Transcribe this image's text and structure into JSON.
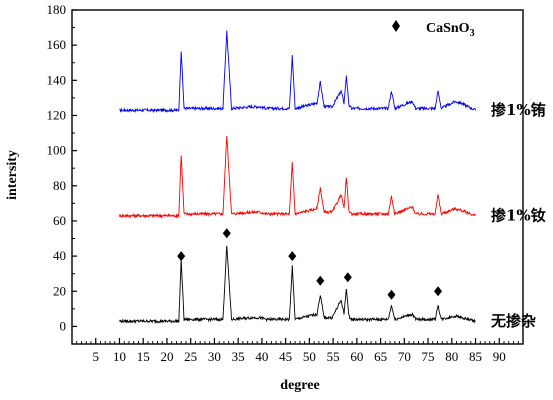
{
  "chart_data": {
    "type": "line",
    "title": "",
    "xlabel": "degree",
    "ylabel": "intersity",
    "xlim": [
      0,
      95
    ],
    "ylim": [
      -10,
      180
    ],
    "x_ticks": [
      "5",
      "10",
      "15",
      "20",
      "25",
      "30",
      "35",
      "40",
      "45",
      "50",
      "55",
      "60",
      "65",
      "70",
      "75",
      "80",
      "85",
      "90"
    ],
    "y_ticks": [
      "0",
      "20",
      "40",
      "60",
      "80",
      "100",
      "120",
      "140",
      "160",
      "180"
    ],
    "legend": {
      "marker": "diamond",
      "label_main": "CaSnO",
      "label_sub": "3",
      "placement": "top-right"
    },
    "colors": {
      "blue": "#0000ff",
      "red": "#ff0000",
      "black": "#000000"
    },
    "series": [
      {
        "name": "掺1%铕",
        "color": "#0000ff",
        "baseline": 123,
        "x": [
          10,
          22.5,
          23.0,
          23.6,
          31.8,
          32.6,
          33.6,
          37.8,
          39.5,
          41,
          45.8,
          46.4,
          47.0,
          51.6,
          52.3,
          53.1,
          54.8,
          56.7,
          57.3,
          57.8,
          58.3,
          58.9,
          63.2,
          64.5,
          66.6,
          67.3,
          68.0,
          71.7,
          72.4,
          76.5,
          77.1,
          77.8,
          80.7,
          82,
          85
        ],
        "y": [
          123,
          123,
          157,
          124,
          124,
          168,
          124,
          125,
          125,
          124,
          124,
          154,
          124,
          127,
          139,
          125,
          125,
          134,
          127,
          143,
          126,
          124,
          124,
          124,
          124,
          134,
          124,
          128,
          124,
          124,
          134,
          124,
          128,
          127,
          123
        ]
      },
      {
        "name": "掺1%钕",
        "color": "#ff0000",
        "baseline": 63,
        "x": [
          10,
          22.5,
          23.0,
          23.6,
          31.8,
          32.6,
          33.6,
          37.8,
          39.5,
          41,
          45.8,
          46.4,
          47.0,
          51.6,
          52.3,
          53.1,
          54.8,
          56.7,
          57.3,
          57.8,
          58.3,
          58.9,
          63.2,
          64.5,
          66.6,
          67.3,
          68.0,
          71.7,
          72.4,
          76.5,
          77.1,
          77.8,
          80.7,
          82,
          85
        ],
        "y": [
          63,
          63,
          98,
          64,
          64,
          109,
          64,
          65,
          65,
          64,
          64,
          93,
          64,
          67,
          79,
          65,
          65,
          75,
          67,
          85,
          66,
          64,
          64,
          64,
          64,
          74,
          64,
          68,
          64,
          64,
          75,
          64,
          67,
          66,
          63
        ]
      },
      {
        "name": "无掺杂",
        "color": "#000000",
        "baseline": 3,
        "x": [
          10,
          22.5,
          23.0,
          23.6,
          31.8,
          32.6,
          33.6,
          37.8,
          39.5,
          41,
          45.8,
          46.4,
          47.0,
          51.6,
          52.3,
          53.1,
          54.8,
          56.7,
          57.3,
          57.8,
          58.3,
          58.9,
          63.2,
          64.5,
          66.6,
          67.3,
          68.0,
          71.7,
          72.4,
          76.5,
          77.1,
          77.8,
          80.7,
          82,
          85
        ],
        "y": [
          3,
          3,
          38,
          4,
          4,
          46,
          4,
          5,
          5,
          4,
          4,
          34,
          4,
          7,
          18,
          5,
          5,
          15,
          7,
          22,
          6,
          4,
          4,
          4,
          4,
          12,
          4,
          7,
          4,
          4,
          12,
          4,
          6,
          5,
          3
        ]
      }
    ],
    "peak_markers": [
      {
        "x": 23.0,
        "y": 40
      },
      {
        "x": 32.6,
        "y": 53
      },
      {
        "x": 46.4,
        "y": 40
      },
      {
        "x": 52.3,
        "y": 26
      },
      {
        "x": 58.1,
        "y": 28
      },
      {
        "x": 67.3,
        "y": 18
      },
      {
        "x": 77.1,
        "y": 20
      }
    ]
  }
}
